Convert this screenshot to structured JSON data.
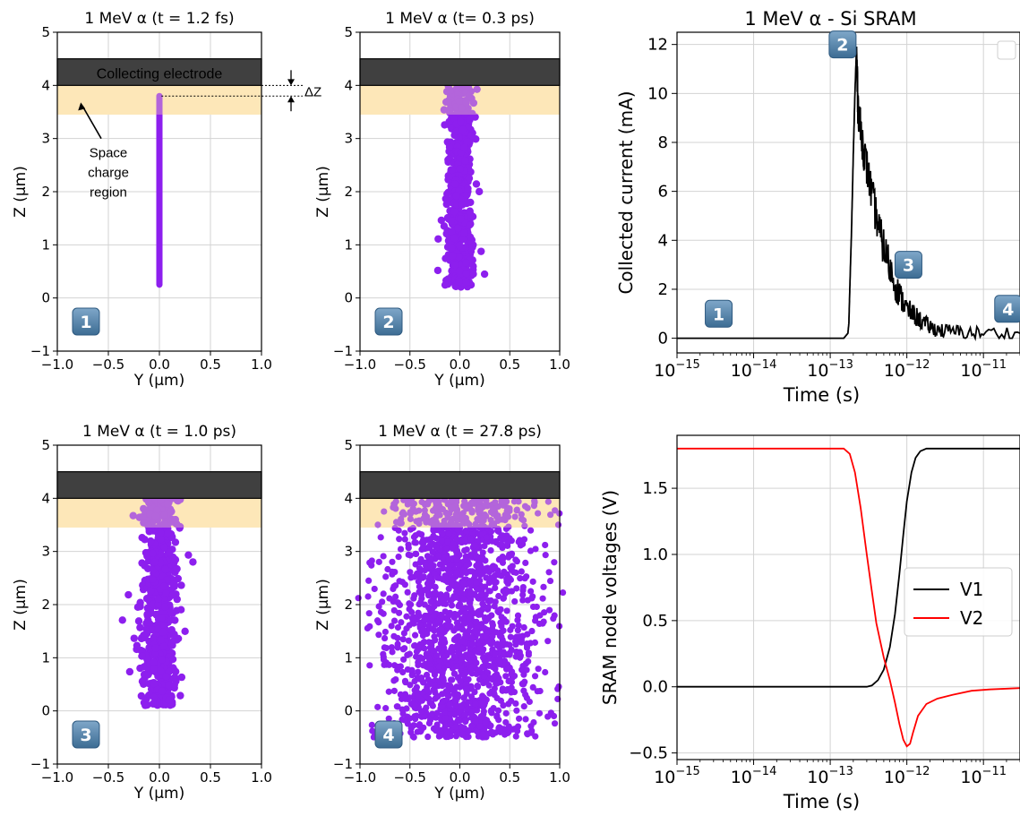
{
  "colors": {
    "electrode": "#404040",
    "space_charge": "#fde7b8",
    "carriers": "#8d1fee",
    "grid": "#d3d3d3",
    "current_line": "#000000",
    "v1": "#000000",
    "v2": "#ff0000",
    "badge_top": "#7fa7c9",
    "badge_bottom": "#3c6c93"
  },
  "annotations": {
    "electrode_label": "Collecting electrode",
    "space_charge_label": [
      "Space",
      "charge",
      "region"
    ],
    "delta_z": "ΔZ"
  },
  "chart_data": [
    {
      "type": "scatter",
      "title": "1 MeV α (t = 1.2 fs)",
      "xlabel": "Y (μm)",
      "ylabel": "Z (μm)",
      "xlim": [
        -1.0,
        1.0
      ],
      "ylim": [
        -1,
        5
      ],
      "x_ticks": [
        "−1.0",
        "−0.5",
        "0.0",
        "0.5",
        "1.0"
      ],
      "y_ticks": [
        "−1",
        "0",
        "1",
        "2",
        "3",
        "4",
        "5"
      ],
      "grid": true,
      "electrode_z": [
        4.0,
        4.5
      ],
      "space_charge_z": [
        3.45,
        4.0
      ],
      "carrier_cloud": {
        "y_halfwidth": 0.02,
        "z_range": [
          0.25,
          3.8
        ]
      },
      "badge": "1"
    },
    {
      "type": "scatter",
      "title": "1 MeV α (t= 0.3 ps)",
      "xlabel": "Y (μm)",
      "ylabel": "Z (μm)",
      "xlim": [
        -1.0,
        1.0
      ],
      "ylim": [
        -1,
        5
      ],
      "x_ticks": [
        "−1.0",
        "−0.5",
        "0.0",
        "0.5",
        "1.0"
      ],
      "y_ticks": [
        "−1",
        "0",
        "1",
        "2",
        "3",
        "4",
        "5"
      ],
      "grid": true,
      "electrode_z": [
        4.0,
        4.5
      ],
      "space_charge_z": [
        3.45,
        4.0
      ],
      "carrier_cloud": {
        "y_halfwidth": 0.13,
        "z_range": [
          0.2,
          4.0
        ]
      },
      "badge": "2"
    },
    {
      "type": "scatter",
      "title": "1 MeV α (t = 1.0 ps)",
      "xlabel": "Y (μm)",
      "ylabel": "Z (μm)",
      "xlim": [
        -1.0,
        1.0
      ],
      "ylim": [
        -1,
        5
      ],
      "x_ticks": [
        "−1.0",
        "−0.5",
        "0.0",
        "0.5",
        "1.0"
      ],
      "y_ticks": [
        "−1",
        "0",
        "1",
        "2",
        "3",
        "4",
        "5"
      ],
      "grid": true,
      "electrode_z": [
        4.0,
        4.5
      ],
      "space_charge_z": [
        3.45,
        4.0
      ],
      "carrier_cloud": {
        "y_halfwidth": 0.18,
        "z_range": [
          0.1,
          4.0
        ]
      },
      "badge": "3"
    },
    {
      "type": "scatter",
      "title": "1 MeV α (t = 27.8 ps)",
      "xlabel": "Y (μm)",
      "ylabel": "Z (μm)",
      "xlim": [
        -1.0,
        1.0
      ],
      "ylim": [
        -1,
        5
      ],
      "x_ticks": [
        "−1.0",
        "−0.5",
        "0.0",
        "0.5",
        "1.0"
      ],
      "y_ticks": [
        "−1",
        "0",
        "1",
        "2",
        "3",
        "4",
        "5"
      ],
      "grid": true,
      "electrode_z": [
        4.0,
        4.5
      ],
      "space_charge_z": [
        3.45,
        4.0
      ],
      "carrier_cloud": {
        "y_halfwidth": 0.95,
        "z_range": [
          -0.5,
          4.0
        ]
      },
      "badge": "4"
    },
    {
      "type": "line",
      "title": "1 MeV α - Si SRAM",
      "xlabel": "Time (s)",
      "ylabel": "Collected current (mA)",
      "x_scale": "log",
      "xlim": [
        1e-15,
        3e-11
      ],
      "ylim": [
        -0.6,
        12.5
      ],
      "x_ticks": [
        {
          "base": "10",
          "exp": "−15",
          "v": 1e-15
        },
        {
          "base": "10",
          "exp": "−14",
          "v": 1e-14
        },
        {
          "base": "10",
          "exp": "−13",
          "v": 1e-13
        },
        {
          "base": "10",
          "exp": "−12",
          "v": 1e-12
        },
        {
          "base": "10",
          "exp": "−11",
          "v": 1e-11
        }
      ],
      "y_ticks": [
        "0",
        "2",
        "4",
        "6",
        "8",
        "10",
        "12"
      ],
      "grid": true,
      "series": [
        {
          "x": [
            1e-15,
            1.5e-13,
            1.7e-13,
            1.75e-13,
            1.8e-13,
            1.9e-13,
            2e-13,
            2.1e-13,
            2.2e-13,
            2.3e-13,
            2.5e-13,
            2.8e-13,
            3.2e-13,
            3.8e-13,
            4.5e-13,
            5.5e-13,
            7e-13,
            8.5e-13,
            1e-12,
            1.3e-12,
            1.7e-12,
            2.2e-12,
            3e-12,
            5e-12,
            1e-11,
            3e-11
          ],
          "y": [
            0,
            0,
            0.2,
            0.6,
            2.0,
            4.5,
            7.5,
            10.0,
            11.8,
            9.5,
            8.5,
            7.5,
            6.5,
            5.3,
            4.2,
            3.3,
            2.2,
            1.6,
            1.2,
            0.9,
            0.6,
            0.4,
            0.3,
            0.25,
            0.2,
            0.2
          ]
        }
      ],
      "badges": [
        {
          "label": "1",
          "x": 3.5e-15,
          "y": 1.0
        },
        {
          "label": "2",
          "x": 1.45e-13,
          "y": 12.0
        },
        {
          "label": "3",
          "x": 1.05e-12,
          "y": 3.0
        },
        {
          "label": "4",
          "x": 2.1e-11,
          "y": 1.2
        }
      ],
      "legend": "top-right (empty)"
    },
    {
      "type": "line",
      "title": "",
      "xlabel": "Time (s)",
      "ylabel": "SRAM node voltages (V)",
      "x_scale": "log",
      "xlim": [
        1e-15,
        3e-11
      ],
      "ylim": [
        -0.55,
        1.9
      ],
      "x_ticks": [
        {
          "base": "10",
          "exp": "−15",
          "v": 1e-15
        },
        {
          "base": "10",
          "exp": "−14",
          "v": 1e-14
        },
        {
          "base": "10",
          "exp": "−13",
          "v": 1e-13
        },
        {
          "base": "10",
          "exp": "−12",
          "v": 1e-12
        },
        {
          "base": "10",
          "exp": "−11",
          "v": 1e-11
        }
      ],
      "y_ticks": [
        "−0.5",
        "0.0",
        "0.5",
        "1.0",
        "1.5"
      ],
      "grid": true,
      "legend": "center-right",
      "series": [
        {
          "name": "V1",
          "x": [
            1e-15,
            3e-13,
            3.5e-13,
            4.2e-13,
            5e-13,
            6e-13,
            7e-13,
            8e-13,
            9e-13,
            1e-12,
            1.15e-12,
            1.3e-12,
            1.5e-12,
            1.8e-12,
            3e-11
          ],
          "y": [
            0,
            0,
            0.01,
            0.05,
            0.13,
            0.3,
            0.55,
            0.85,
            1.15,
            1.4,
            1.62,
            1.73,
            1.78,
            1.8,
            1.8
          ]
        },
        {
          "name": "V2",
          "x": [
            1e-15,
            1.5e-13,
            1.8e-13,
            2.1e-13,
            2.5e-13,
            3e-13,
            3.5e-13,
            4e-13,
            5e-13,
            6e-13,
            7e-13,
            8e-13,
            9e-13,
            1e-12,
            1.1e-12,
            1.2e-12,
            1.4e-12,
            1.8e-12,
            2.5e-12,
            4e-12,
            7e-12,
            1.2e-11,
            3e-11
          ],
          "y": [
            1.8,
            1.8,
            1.76,
            1.62,
            1.35,
            1.0,
            0.72,
            0.48,
            0.22,
            0.05,
            -0.12,
            -0.28,
            -0.4,
            -0.45,
            -0.43,
            -0.35,
            -0.22,
            -0.13,
            -0.09,
            -0.06,
            -0.03,
            -0.02,
            -0.01
          ]
        }
      ]
    }
  ]
}
